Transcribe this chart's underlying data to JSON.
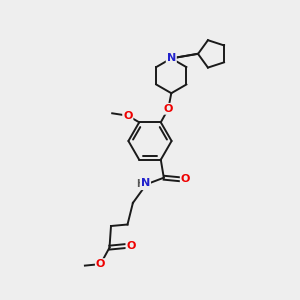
{
  "bg_color": "#eeeeee",
  "bond_color": "#1a1a1a",
  "atom_colors": {
    "O": "#ee0000",
    "N": "#2222cc",
    "C": "#1a1a1a",
    "H": "#555555"
  },
  "figsize": [
    3.0,
    3.0
  ],
  "dpi": 100
}
